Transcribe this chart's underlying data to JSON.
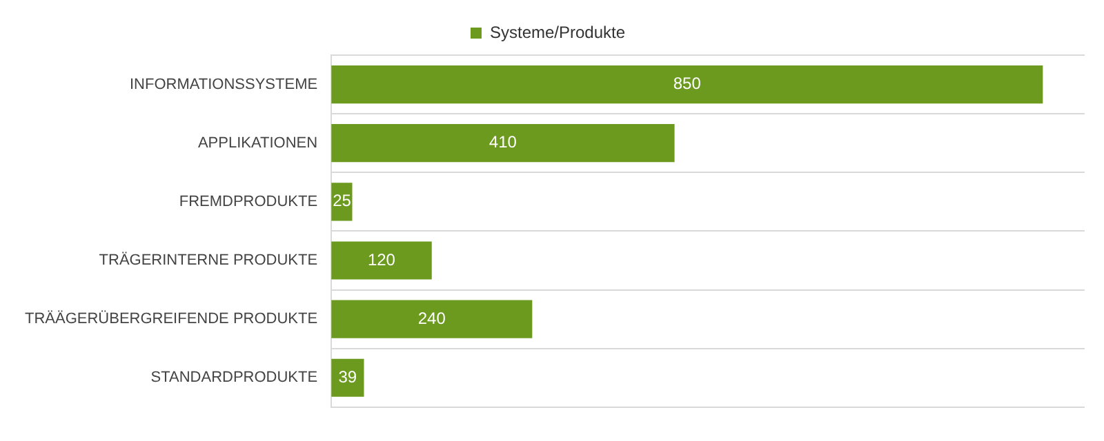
{
  "chart_data": {
    "type": "bar",
    "orientation": "horizontal",
    "categories": [
      "INFORMATIONSSYSTEME",
      "APPLIKATIONEN",
      "FREMDPRODUKTE",
      "TRÄGERINTERNE PRODUKTE",
      "TRÄÄGERÜBERGREIFENDE PRODUKTE",
      "STANDARDPRODUKTE"
    ],
    "series": [
      {
        "name": "Systeme/Produkte",
        "color": "#6b9a1e",
        "values": [
          850,
          410,
          25,
          120,
          240,
          39
        ]
      }
    ],
    "data_labels": true,
    "grid": "y",
    "legend": "top"
  }
}
